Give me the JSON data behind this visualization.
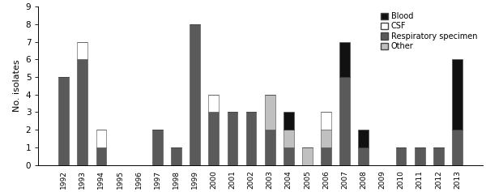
{
  "years": [
    1992,
    1993,
    1994,
    1995,
    1996,
    1997,
    1998,
    1999,
    2000,
    2001,
    2002,
    2003,
    2004,
    2005,
    2006,
    2007,
    2008,
    2009,
    2010,
    2011,
    2012,
    2013
  ],
  "blood": [
    0,
    0,
    0,
    0,
    0,
    0,
    0,
    0,
    0,
    0,
    0,
    0,
    1,
    0,
    0,
    2,
    1,
    0,
    0,
    0,
    0,
    4
  ],
  "csf": [
    0,
    1,
    1,
    0,
    0,
    0,
    0,
    0,
    1,
    0,
    0,
    0,
    0,
    0,
    1,
    0,
    0,
    0,
    0,
    0,
    0,
    0
  ],
  "respiratory": [
    5,
    6,
    1,
    0,
    0,
    2,
    1,
    8,
    3,
    3,
    3,
    2,
    1,
    0,
    1,
    5,
    1,
    0,
    1,
    1,
    1,
    2
  ],
  "other": [
    0,
    0,
    0,
    0,
    0,
    0,
    0,
    0,
    0,
    0,
    0,
    2,
    1,
    1,
    1,
    0,
    0,
    0,
    0,
    0,
    0,
    0
  ],
  "color_blood": "#111111",
  "color_csf": "#ffffff",
  "color_respiratory": "#5a5a5a",
  "color_other": "#c0c0c0",
  "ylabel": "No. isolates",
  "ylim": [
    0,
    9
  ],
  "yticks": [
    0,
    1,
    2,
    3,
    4,
    5,
    6,
    7,
    8,
    9
  ],
  "bar_edge_color": "#444444",
  "bar_width": 0.55,
  "legend_labels": [
    "Blood",
    "CSF",
    "Respiratory specimen",
    "Other"
  ],
  "legend_colors": [
    "#111111",
    "#ffffff",
    "#5a5a5a",
    "#c0c0c0"
  ]
}
